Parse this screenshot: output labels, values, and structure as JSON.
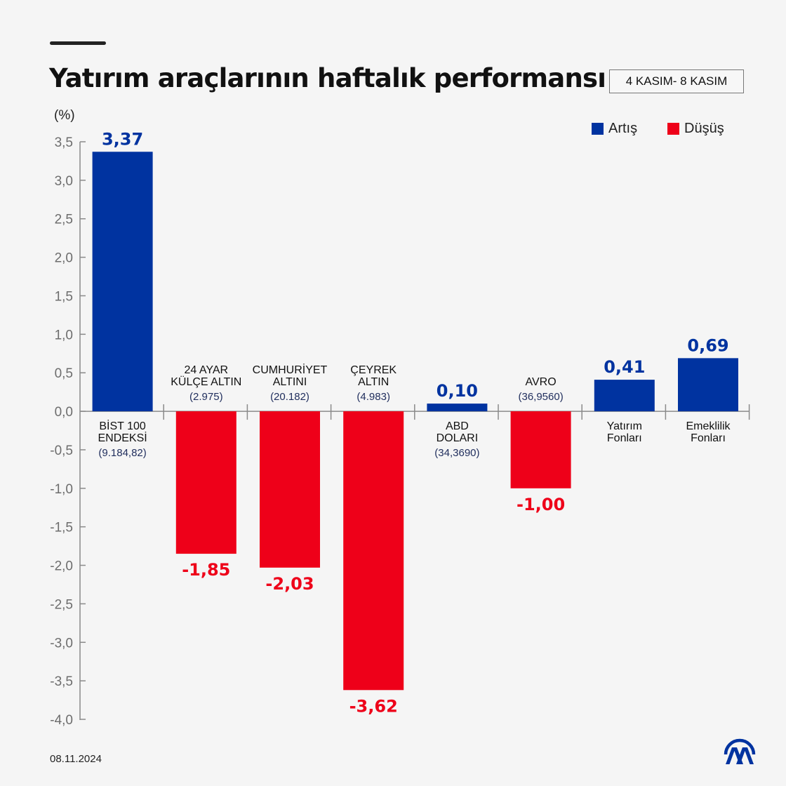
{
  "header": {
    "title": "Yatırım araçlarının haftalık performansı",
    "date_range": "4 KASIM- 8 KASIM"
  },
  "footer": {
    "date": "08.11.2024",
    "logo": "aa-logo-icon"
  },
  "colors": {
    "increase": "#0033a0",
    "decrease": "#ee0019",
    "axis": "#8a8a8a",
    "tick_label": "#6d6d6d",
    "sub_label": "#1f2d5c"
  },
  "chart_data": {
    "type": "bar",
    "title": "Yatırım araçlarının haftalık performansı",
    "ylabel": "(%)",
    "xlabel": "",
    "ylim": [
      -4.0,
      3.5
    ],
    "yticks": [
      3.5,
      3.0,
      2.5,
      2.0,
      1.5,
      1.0,
      0.5,
      0.0,
      -0.5,
      -1.0,
      -1.5,
      -2.0,
      -2.5,
      -3.0,
      -3.5,
      -4.0
    ],
    "ytick_labels": [
      "3,5",
      "3,0",
      "2,5",
      "2,0",
      "1,5",
      "1,0",
      "0,5",
      "0,0",
      "-0,5",
      "-1,0",
      "-1,5",
      "-2,0",
      "-2,5",
      "-3,0",
      "-3,5",
      "-4,0"
    ],
    "grid": false,
    "legend": {
      "position": "top-right",
      "entries": [
        {
          "label": "Artış",
          "color": "#0033a0"
        },
        {
          "label": "Düşüş",
          "color": "#ee0019"
        }
      ]
    },
    "categories": [
      {
        "name_lines": [
          "BİST 100",
          "ENDEKSİ"
        ],
        "sub": "(9.184,82)"
      },
      {
        "name_lines": [
          "24 AYAR",
          "KÜLÇE ALTIN"
        ],
        "sub": "(2.975)"
      },
      {
        "name_lines": [
          "CUMHURİYET",
          "ALTINI"
        ],
        "sub": "(20.182)"
      },
      {
        "name_lines": [
          "ÇEYREK",
          "ALTIN"
        ],
        "sub": "(4.983)"
      },
      {
        "name_lines": [
          "ABD",
          "DOLARI"
        ],
        "sub": "(34,3690)"
      },
      {
        "name_lines": [
          "AVRO"
        ],
        "sub": "(36,9560)"
      },
      {
        "name_lines": [
          "Yatırım",
          "Fonları"
        ],
        "sub": ""
      },
      {
        "name_lines": [
          "Emeklilik",
          "Fonları"
        ],
        "sub": ""
      }
    ],
    "values": [
      3.37,
      -1.85,
      -2.03,
      -3.62,
      0.1,
      -1.0,
      0.41,
      0.69
    ],
    "value_labels": [
      "3,37",
      "-1,85",
      "-2,03",
      "-3,62",
      "0,10",
      "-1,00",
      "0,41",
      "0,69"
    ]
  }
}
